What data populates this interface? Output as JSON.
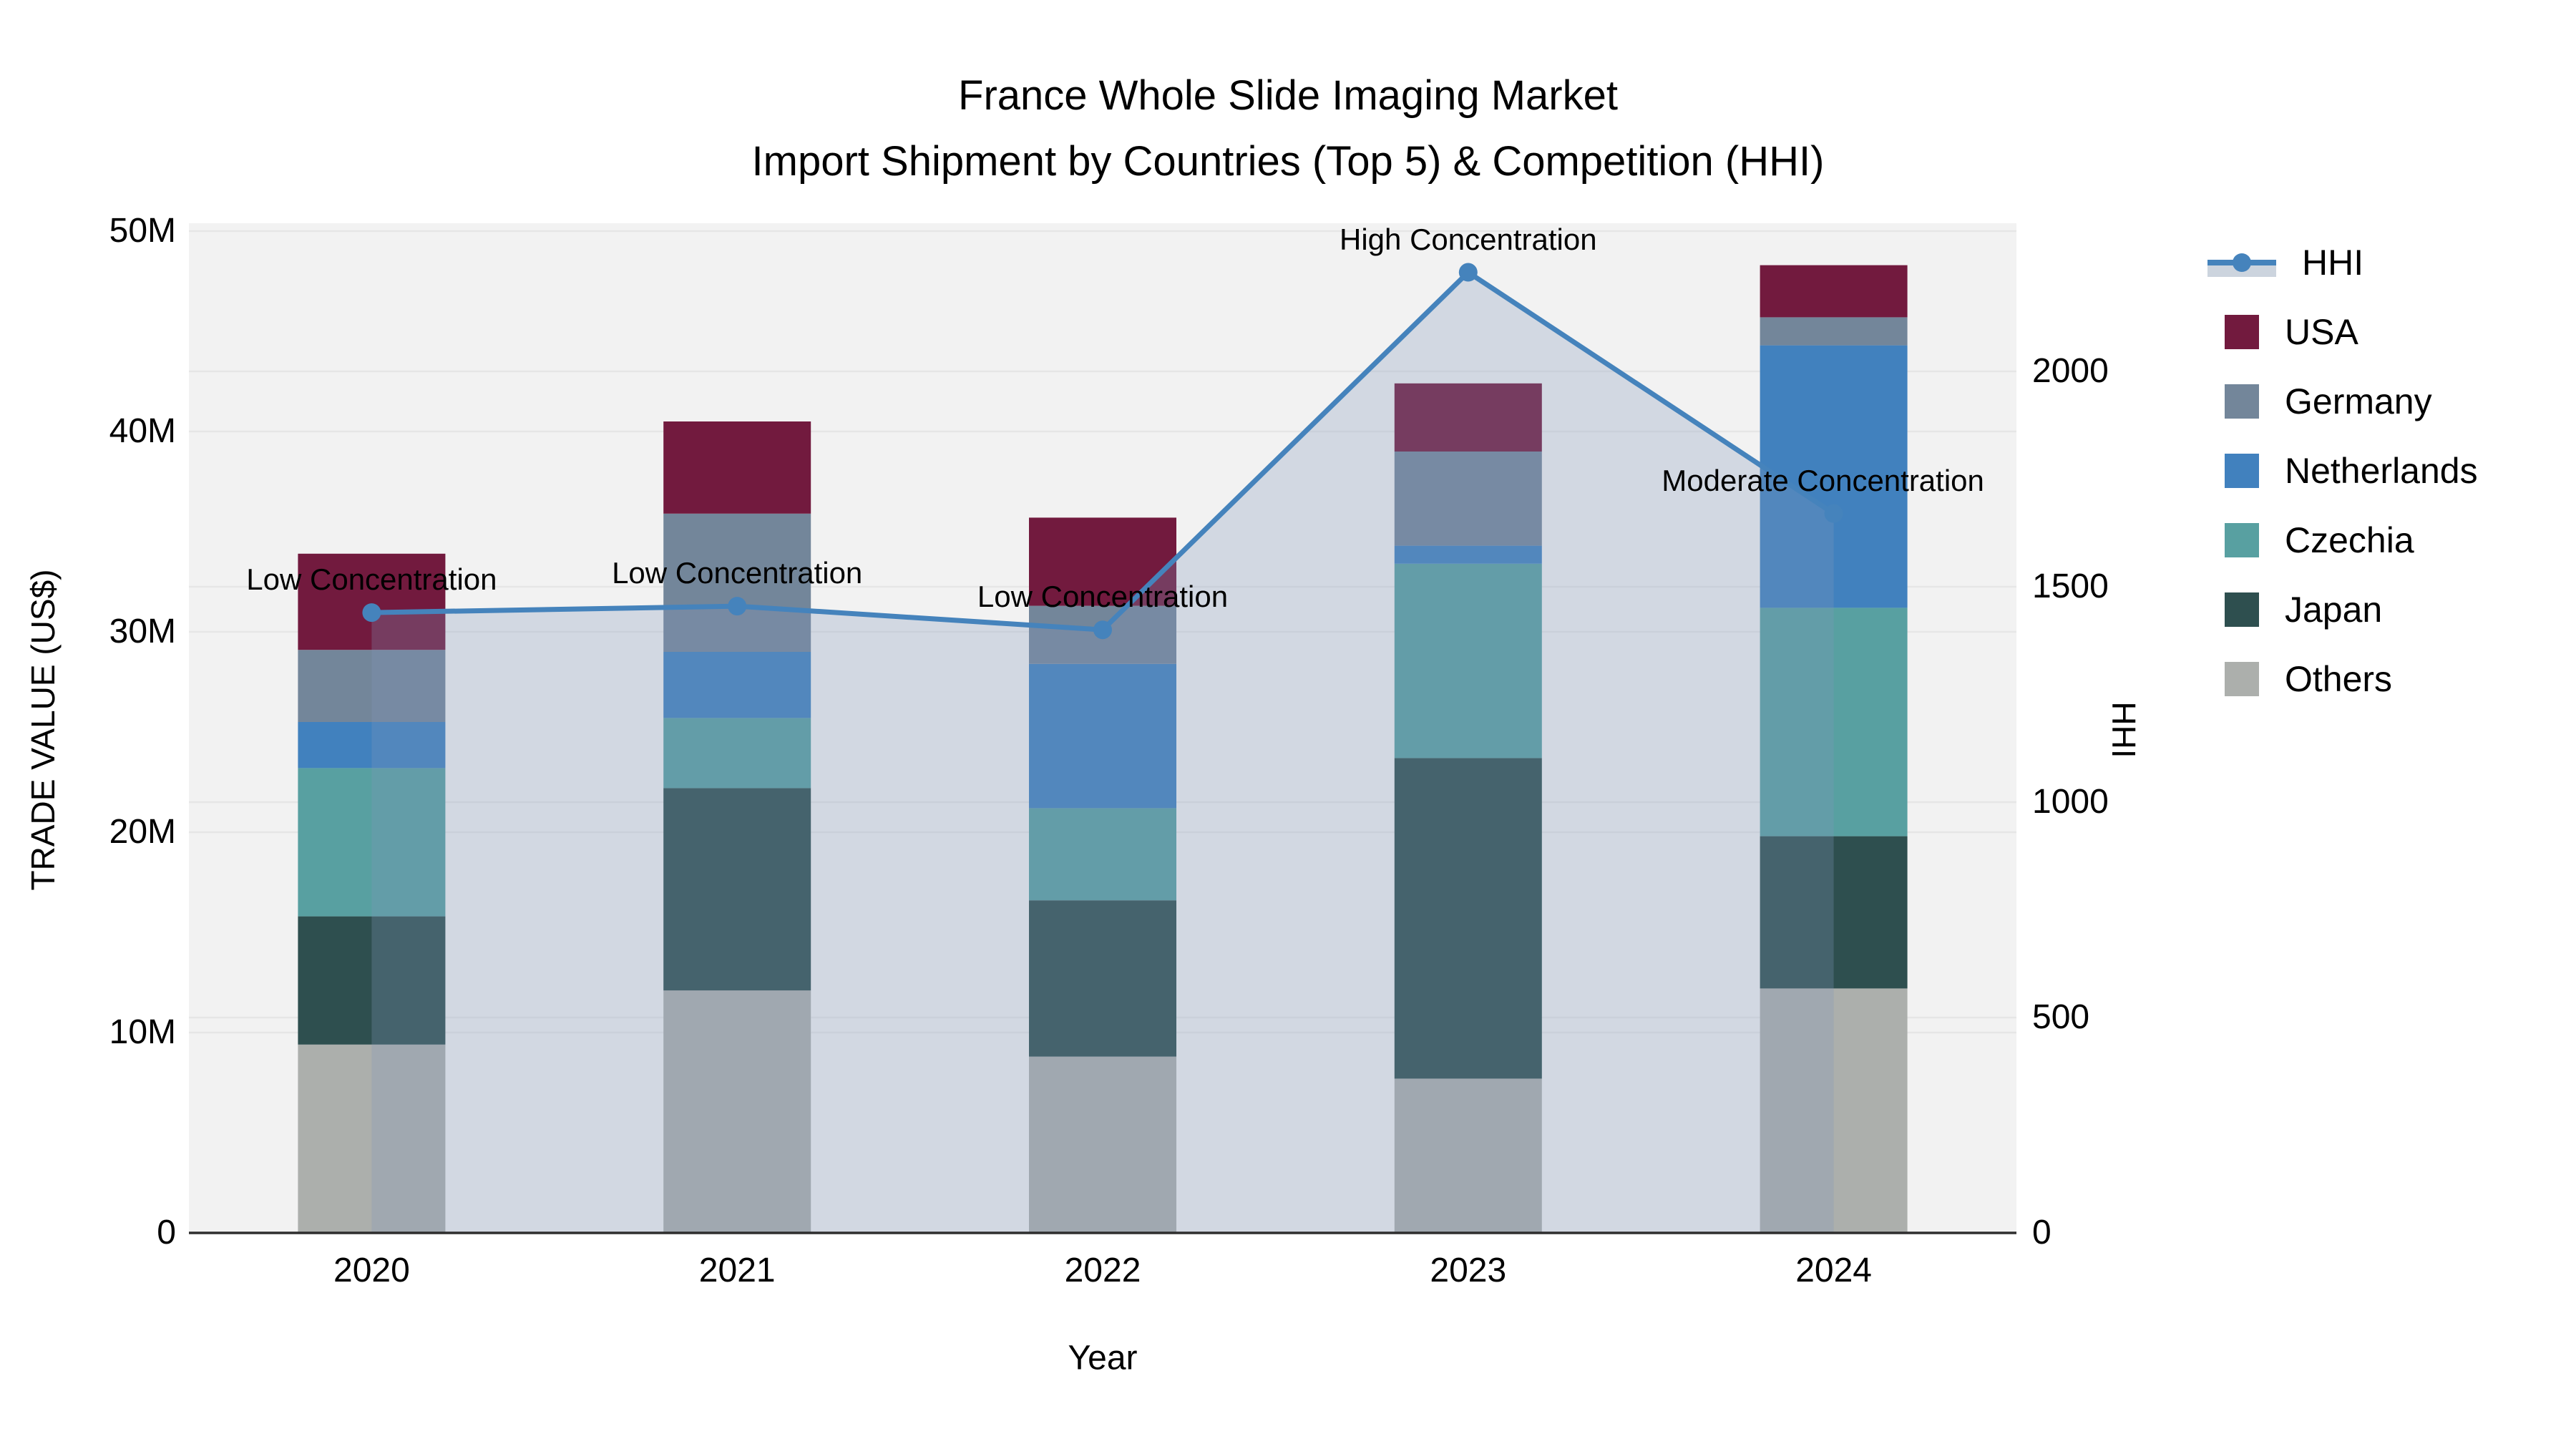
{
  "title": {
    "line1": "France Whole Slide Imaging Market",
    "line2": "Import Shipment by Countries (Top 5) & Competition (HHI)"
  },
  "axes": {
    "x_title": "Year",
    "y_left_title": "TRADE VALUE (US$)",
    "y_right_title": "HHI",
    "x_ticks": [
      "2020",
      "2021",
      "2022",
      "2023",
      "2024"
    ],
    "y_left_ticks": [
      {
        "value": 0,
        "label": "0"
      },
      {
        "value": 10,
        "label": "10M"
      },
      {
        "value": 20,
        "label": "20M"
      },
      {
        "value": 30,
        "label": "30M"
      },
      {
        "value": 40,
        "label": "40M"
      },
      {
        "value": 50,
        "label": "50M"
      }
    ],
    "y_right_ticks": [
      {
        "value": 0,
        "label": "0"
      },
      {
        "value": 500,
        "label": "500"
      },
      {
        "value": 1000,
        "label": "1000"
      },
      {
        "value": 1500,
        "label": "1500"
      },
      {
        "value": 2000,
        "label": "2000"
      }
    ]
  },
  "legend": {
    "items": [
      {
        "label": "HHI",
        "type": "line",
        "color": "#4583BC"
      },
      {
        "label": "USA",
        "type": "box",
        "color": "#721A3E"
      },
      {
        "label": "Germany",
        "type": "box",
        "color": "#73869A"
      },
      {
        "label": "Netherlands",
        "type": "box",
        "color": "#4181BE"
      },
      {
        "label": "Czechia",
        "type": "box",
        "color": "#58A0A1"
      },
      {
        "label": "Japan",
        "type": "box",
        "color": "#2E4F4F"
      },
      {
        "label": "Others",
        "type": "box",
        "color": "#ACAFAC"
      }
    ]
  },
  "chart_data": {
    "type": "combo_stacked_bar_line",
    "categories": [
      "2020",
      "2021",
      "2022",
      "2023",
      "2024"
    ],
    "bar_value_unit": "million US$",
    "bar_series_bottom_to_top": [
      {
        "name": "Others",
        "color": "#ACAFAC",
        "values": [
          9.4,
          12.1,
          8.8,
          7.7,
          12.2
        ]
      },
      {
        "name": "Japan",
        "color": "#2E4F4F",
        "values": [
          6.4,
          10.1,
          7.8,
          16.0,
          7.6
        ]
      },
      {
        "name": "Czechia",
        "color": "#58A0A1",
        "values": [
          7.4,
          3.5,
          4.6,
          9.7,
          11.4
        ]
      },
      {
        "name": "Netherlands",
        "color": "#4181BE",
        "values": [
          2.3,
          3.3,
          7.2,
          0.9,
          13.1
        ]
      },
      {
        "name": "Germany",
        "color": "#73869A",
        "values": [
          3.6,
          6.9,
          2.9,
          4.7,
          1.4
        ]
      },
      {
        "name": "USA",
        "color": "#721A3E",
        "values": [
          4.8,
          4.6,
          4.4,
          3.4,
          2.6
        ]
      }
    ],
    "bar_totals": [
      33.9,
      40.5,
      35.7,
      42.4,
      48.3
    ],
    "line_series": {
      "name": "HHI",
      "color": "#4583BC",
      "values": [
        1440,
        1455,
        1400,
        2230,
        1670
      ]
    },
    "annotations": [
      "Low Concentration",
      "Low Concentration",
      "Low Concentration",
      "High Concentration",
      "Moderate Concentration"
    ],
    "ylim_left": [
      0,
      50
    ],
    "ylim_right": [
      0,
      2326
    ],
    "grid": true,
    "legend_position": "right"
  },
  "colors": {
    "plot_bg": "#F2F2F2",
    "grid": "#E6E6E6",
    "axis_line": "#2E2E2E",
    "area_fill": "rgba(130,150,185,0.28)",
    "legend_hhi_band": "#CCD4DE"
  }
}
